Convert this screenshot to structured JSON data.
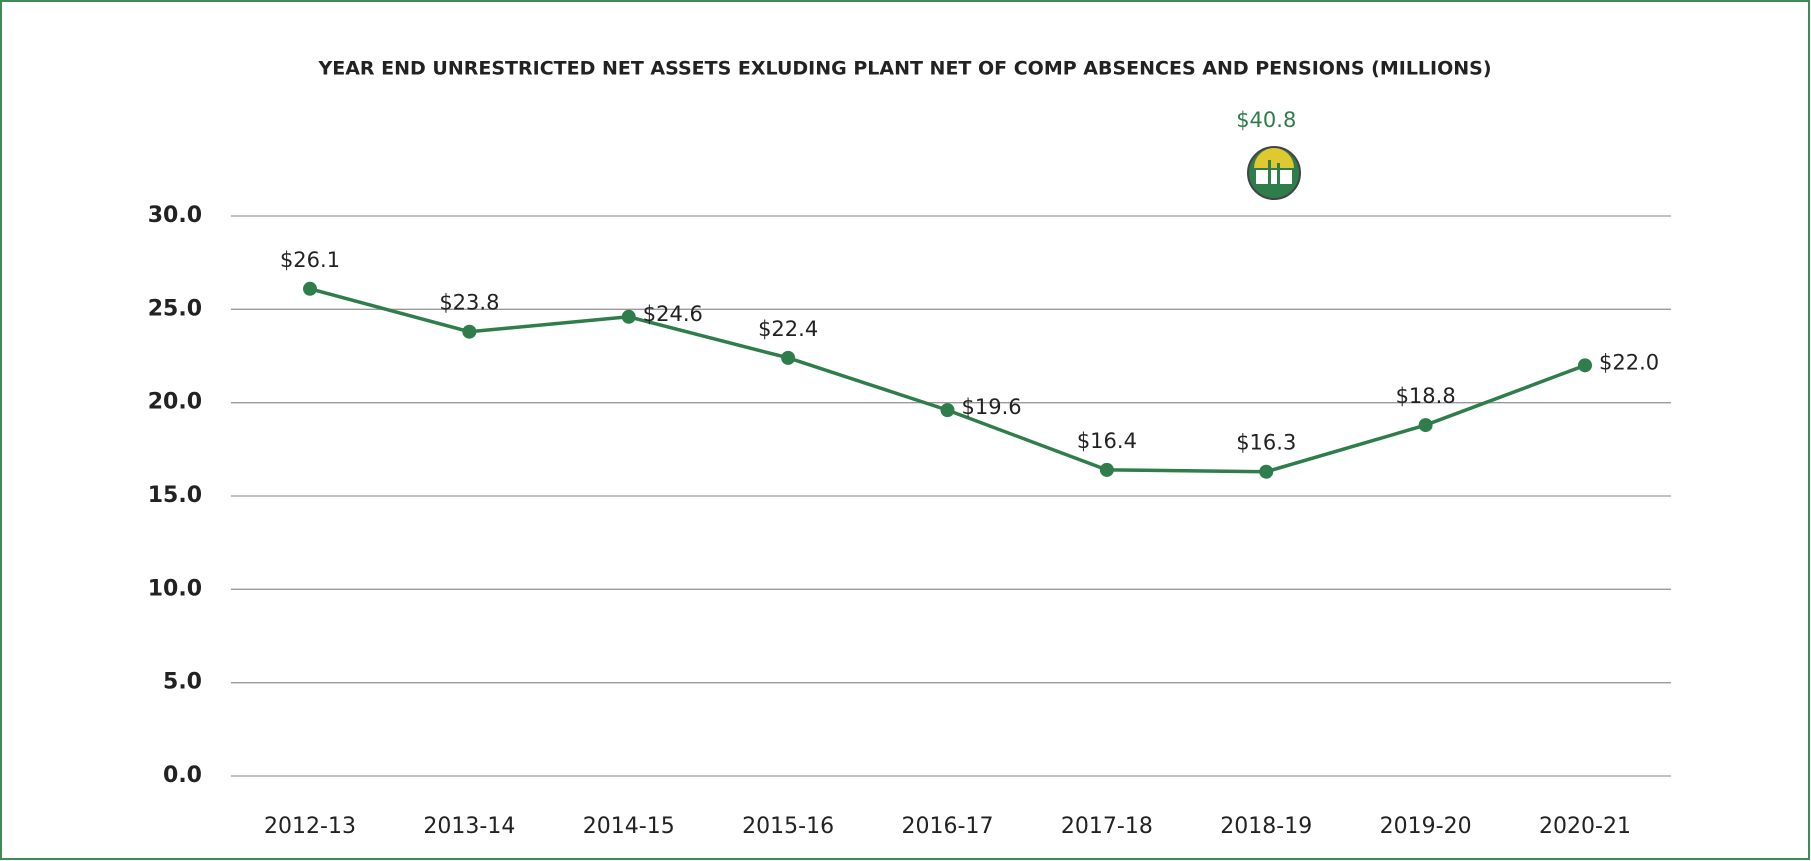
{
  "chart_data": {
    "type": "line",
    "title": "YEAR END UNRESTRICTED NET ASSETS EXLUDING PLANT NET OF COMP ABSENCES AND PENSIONS (MILLIONS)",
    "categories": [
      "2012-13",
      "2013-14",
      "2014-15",
      "2015-16",
      "2016-17",
      "2017-18",
      "2018-19",
      "2019-20",
      "2020-21"
    ],
    "series": [
      {
        "color": "#2e7d4a",
        "values": [
          26.1,
          23.8,
          24.6,
          22.4,
          19.6,
          16.4,
          16.3,
          18.8,
          22.0
        ],
        "value_labels": [
          "$26.1",
          "$23.8",
          "$24.6",
          "$22.4",
          "$19.6",
          "$16.4",
          "$16.3",
          "$18.8",
          "$22.0"
        ]
      }
    ],
    "annotation": "$40.8",
    "ylim": [
      0,
      30
    ],
    "yticks": [
      {
        "value": 0,
        "label": "0.0"
      },
      {
        "value": 5,
        "label": "5.0"
      },
      {
        "value": 10,
        "label": "10.0"
      },
      {
        "value": 15,
        "label": "15.0"
      },
      {
        "value": 20,
        "label": "20.0"
      },
      {
        "value": 25,
        "label": "25.0"
      },
      {
        "value": 30,
        "label": "30.0"
      }
    ],
    "grid": true
  }
}
